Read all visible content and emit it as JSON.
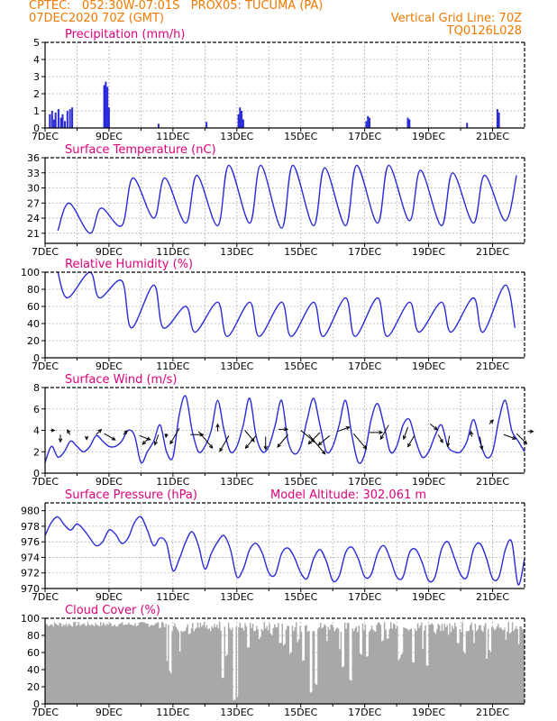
{
  "header": {
    "line1_left": "CPTEC:   052:30W-07:01S   PROX05: TUCUMA (PA)",
    "line2_left": "07DEC2020 70Z (GMT)",
    "line2_right": "Vertical Grid Line: 70Z",
    "line3_right": "TQ0126L028"
  },
  "colors": {
    "header": "#f07a00",
    "title": "#e0007a",
    "line": "#2a2ad8",
    "bar": "#2a2ad8",
    "cloud": "#a8a8a8",
    "arrow": "#000000",
    "grid": "#9a9a9a"
  },
  "chart_data": [
    {
      "type": "bar",
      "title": "Precipitation (mm/h)",
      "x_tick_labels": [
        "7DEC",
        "9DEC",
        "11DEC",
        "13DEC",
        "15DEC",
        "17DEC",
        "19DEC",
        "21DEC"
      ],
      "day_start": 7,
      "day_end": 22,
      "ylim": [
        0,
        5
      ],
      "yticks": [
        0,
        1,
        2,
        3,
        4,
        5
      ],
      "grid": true,
      "bars": [
        [
          7.15,
          0.8
        ],
        [
          7.22,
          1.0
        ],
        [
          7.28,
          0.5
        ],
        [
          7.33,
          0.9
        ],
        [
          7.42,
          1.1
        ],
        [
          7.5,
          0.6
        ],
        [
          7.55,
          0.8
        ],
        [
          7.62,
          0.4
        ],
        [
          7.7,
          1.0
        ],
        [
          7.78,
          1.1
        ],
        [
          7.85,
          1.2
        ],
        [
          8.85,
          2.5
        ],
        [
          8.9,
          2.7
        ],
        [
          8.95,
          2.4
        ],
        [
          9.0,
          1.2
        ],
        [
          10.55,
          0.25
        ],
        [
          12.05,
          0.35
        ],
        [
          13.05,
          0.8
        ],
        [
          13.1,
          1.2
        ],
        [
          13.15,
          1.0
        ],
        [
          13.2,
          0.5
        ],
        [
          17.05,
          0.4
        ],
        [
          17.1,
          0.7
        ],
        [
          17.15,
          0.6
        ],
        [
          18.35,
          0.6
        ],
        [
          18.4,
          0.5
        ],
        [
          20.2,
          0.3
        ],
        [
          21.15,
          1.1
        ],
        [
          21.2,
          0.9
        ]
      ]
    },
    {
      "type": "line",
      "title": "Surface Temperature (nC)",
      "x_tick_labels": [
        "7DEC",
        "9DEC",
        "11DEC",
        "13DEC",
        "15DEC",
        "17DEC",
        "19DEC",
        "21DEC"
      ],
      "day_start": 7,
      "day_end": 22,
      "ylim": [
        19,
        36
      ],
      "yticks": [
        21,
        24,
        27,
        30,
        33,
        36
      ],
      "grid": true,
      "min_hour": 0.4,
      "max_hour": 0.75,
      "daily_min": [
        21.5,
        21.0,
        22.5,
        24.0,
        23.0,
        22.5,
        23.0,
        22.0,
        22.5,
        22.5,
        23.0,
        23.5,
        22.5,
        23.0,
        23.5,
        22.0
      ],
      "daily_max": [
        27.0,
        26.0,
        32.0,
        32.0,
        32.5,
        34.5,
        34.5,
        34.5,
        34.0,
        34.5,
        34.5,
        33.5,
        33.0,
        32.5,
        32.5,
        31.5
      ]
    },
    {
      "type": "line",
      "title": "Relative Humidity (%)",
      "x_tick_labels": [
        "7DEC",
        "9DEC",
        "11DEC",
        "13DEC",
        "15DEC",
        "17DEC",
        "19DEC",
        "21DEC"
      ],
      "day_start": 7,
      "day_end": 22,
      "ylim": [
        0,
        100
      ],
      "yticks": [
        0,
        20,
        40,
        60,
        80,
        100
      ],
      "grid": true,
      "min_hour": 0.7,
      "max_hour": 0.4,
      "daily_max": [
        100,
        100,
        90,
        85,
        60,
        65,
        65,
        65,
        65,
        70,
        70,
        65,
        65,
        70,
        85,
        85
      ],
      "daily_min": [
        70,
        70,
        35,
        35,
        30,
        25,
        25,
        25,
        25,
        25,
        25,
        30,
        30,
        30,
        35,
        45
      ]
    },
    {
      "type": "line",
      "title": "Surface Wind (m/s)",
      "x_tick_labels": [
        "7DEC",
        "9DEC",
        "11DEC",
        "13DEC",
        "15DEC",
        "17DEC",
        "19DEC",
        "21DEC"
      ],
      "day_start": 7,
      "day_end": 22,
      "ylim": [
        0,
        8
      ],
      "yticks": [
        0,
        2,
        4,
        6,
        8
      ],
      "grid": true,
      "x": [
        7.0,
        7.2,
        7.4,
        7.6,
        7.8,
        8.0,
        8.2,
        8.4,
        8.6,
        8.8,
        9.0,
        9.2,
        9.4,
        9.6,
        9.8,
        10.0,
        10.2,
        10.4,
        10.6,
        10.8,
        11.0,
        11.2,
        11.4,
        11.6,
        11.8,
        12.0,
        12.2,
        12.4,
        12.6,
        12.8,
        13.0,
        13.2,
        13.4,
        13.6,
        13.8,
        14.0,
        14.2,
        14.4,
        14.6,
        14.8,
        15.0,
        15.2,
        15.4,
        15.6,
        15.8,
        16.0,
        16.2,
        16.4,
        16.6,
        16.8,
        17.0,
        17.2,
        17.4,
        17.6,
        17.8,
        18.0,
        18.2,
        18.4,
        18.6,
        18.8,
        19.0,
        19.2,
        19.4,
        19.6,
        19.8,
        20.0,
        20.2,
        20.4,
        20.6,
        20.8,
        21.0,
        21.2,
        21.4,
        21.6,
        21.8,
        22.0
      ],
      "values": [
        1.0,
        2.5,
        1.5,
        2.0,
        3.0,
        2.5,
        2.0,
        2.5,
        3.5,
        3.0,
        2.5,
        2.5,
        3.0,
        4.0,
        3.5,
        1.0,
        2.0,
        3.0,
        4.5,
        2.0,
        1.5,
        5.5,
        7.2,
        4.0,
        2.0,
        2.5,
        4.0,
        6.8,
        4.0,
        2.0,
        2.5,
        4.5,
        7.0,
        3.5,
        2.0,
        2.5,
        4.5,
        6.8,
        3.0,
        1.8,
        2.5,
        5.0,
        7.0,
        4.5,
        2.0,
        2.5,
        4.5,
        6.8,
        3.5,
        1.0,
        1.8,
        5.0,
        6.5,
        4.5,
        2.0,
        2.5,
        4.5,
        5.0,
        3.0,
        1.5,
        2.0,
        3.5,
        4.5,
        2.5,
        2.0,
        2.0,
        3.0,
        5.0,
        3.0,
        1.5,
        2.0,
        5.0,
        6.8,
        4.0,
        3.0,
        2.0
      ],
      "arrows": [
        [
          7.18,
          4.0,
          0,
          4
        ],
        [
          7.48,
          3.6,
          -90,
          8
        ],
        [
          7.78,
          3.6,
          120,
          6
        ],
        [
          8.3,
          3.4,
          -90,
          3
        ],
        [
          8.6,
          3.6,
          45,
          8
        ],
        [
          8.85,
          3.7,
          -30,
          14
        ],
        [
          9.45,
          3.6,
          45,
          6
        ],
        [
          9.95,
          3.5,
          -20,
          13
        ],
        [
          10.25,
          3.3,
          -135,
          10
        ],
        [
          10.55,
          3.6,
          -110,
          12
        ],
        [
          10.8,
          3.7,
          -100,
          4
        ],
        [
          11.2,
          4.2,
          -120,
          20
        ],
        [
          11.55,
          3.6,
          0,
          14
        ],
        [
          11.8,
          3.9,
          -50,
          24
        ],
        [
          12.4,
          3.9,
          90,
          8
        ],
        [
          12.75,
          3.5,
          -120,
          20
        ],
        [
          13.25,
          4.0,
          -50,
          16
        ],
        [
          13.6,
          3.5,
          -130,
          18
        ],
        [
          13.9,
          3.4,
          -90,
          14
        ],
        [
          14.3,
          4.1,
          0,
          10
        ],
        [
          14.6,
          3.6,
          -130,
          18
        ],
        [
          15.0,
          4.0,
          -40,
          20
        ],
        [
          15.25,
          3.6,
          -50,
          28
        ],
        [
          15.6,
          3.8,
          -135,
          18
        ],
        [
          15.9,
          3.5,
          -140,
          16
        ],
        [
          16.15,
          3.9,
          20,
          14
        ],
        [
          16.65,
          3.7,
          -50,
          22
        ],
        [
          17.15,
          3.8,
          0,
          14
        ],
        [
          17.75,
          4.5,
          -120,
          18
        ],
        [
          18.35,
          4.3,
          -110,
          14
        ],
        [
          18.55,
          3.5,
          -120,
          14
        ],
        [
          19.05,
          4.6,
          -40,
          10
        ],
        [
          19.3,
          3.6,
          -60,
          10
        ],
        [
          19.65,
          3.5,
          -100,
          12
        ],
        [
          20.35,
          3.4,
          100,
          6
        ],
        [
          20.6,
          3.4,
          -80,
          14
        ],
        [
          20.9,
          4.6,
          45,
          6
        ],
        [
          21.35,
          3.6,
          -20,
          14
        ],
        [
          21.75,
          3.7,
          -45,
          16
        ],
        [
          22.1,
          3.9,
          0,
          6
        ]
      ]
    },
    {
      "type": "line",
      "title": "Surface Pressure (hPa)",
      "subtitle": "Model Altitude: 302.061 m",
      "x_tick_labels": [
        "7DEC",
        "9DEC",
        "11DEC",
        "13DEC",
        "15DEC",
        "17DEC",
        "19DEC",
        "21DEC"
      ],
      "day_start": 7,
      "day_end": 22,
      "ylim": [
        970,
        981
      ],
      "yticks": [
        970,
        972,
        974,
        976,
        978,
        980
      ],
      "grid": true,
      "x": [
        7.0,
        7.2,
        7.4,
        7.6,
        7.8,
        8.0,
        8.2,
        8.4,
        8.6,
        8.8,
        9.0,
        9.2,
        9.4,
        9.6,
        9.8,
        10.0,
        10.2,
        10.4,
        10.6,
        10.8,
        11.0,
        11.2,
        11.4,
        11.6,
        11.8,
        12.0,
        12.2,
        12.4,
        12.6,
        12.8,
        13.0,
        13.2,
        13.4,
        13.6,
        13.8,
        14.0,
        14.2,
        14.4,
        14.6,
        14.8,
        15.0,
        15.2,
        15.4,
        15.6,
        15.8,
        16.0,
        16.2,
        16.4,
        16.6,
        16.8,
        17.0,
        17.2,
        17.4,
        17.6,
        17.8,
        18.0,
        18.2,
        18.4,
        18.6,
        18.8,
        19.0,
        19.2,
        19.4,
        19.6,
        19.8,
        20.0,
        20.2,
        20.4,
        20.6,
        20.8,
        21.0,
        21.2,
        21.4,
        21.6,
        21.8,
        22.0
      ],
      "values": [
        976.8,
        978.5,
        979.2,
        978.2,
        977.5,
        978.3,
        977.6,
        976.5,
        975.5,
        976.0,
        977.5,
        977.0,
        975.8,
        976.5,
        978.5,
        979.2,
        977.5,
        975.5,
        976.5,
        975.8,
        972.3,
        973.8,
        976.0,
        977.3,
        975.5,
        972.5,
        974.5,
        976.0,
        976.8,
        975.0,
        971.5,
        972.5,
        975.0,
        975.8,
        974.5,
        972.0,
        971.8,
        974.5,
        975.2,
        974.0,
        972.0,
        971.3,
        973.8,
        975.0,
        973.5,
        971.0,
        971.6,
        974.6,
        975.3,
        973.8,
        971.5,
        971.8,
        974.5,
        975.5,
        973.8,
        971.5,
        971.5,
        974.6,
        975.0,
        973.3,
        971.0,
        971.5,
        975.0,
        976.0,
        974.0,
        971.8,
        971.5,
        975.0,
        975.8,
        974.0,
        971.3,
        971.5,
        975.0,
        976.0,
        970.5,
        973.8
      ]
    },
    {
      "type": "area",
      "title": "Cloud Cover (%)",
      "x_tick_labels": [
        "7DEC",
        "9DEC",
        "11DEC",
        "13DEC",
        "15DEC",
        "17DEC",
        "19DEC",
        "21DEC"
      ],
      "day_start": 7,
      "day_end": 22,
      "ylim": [
        0,
        100
      ],
      "yticks": [
        0,
        20,
        40,
        60,
        80,
        100
      ],
      "grid": true,
      "base_level": 93,
      "dips": [
        [
          10.8,
          50
        ],
        [
          10.9,
          35
        ],
        [
          11.2,
          60
        ],
        [
          11.5,
          80
        ],
        [
          11.7,
          88
        ],
        [
          12.1,
          85
        ],
        [
          12.55,
          30
        ],
        [
          12.65,
          55
        ],
        [
          12.9,
          4
        ],
        [
          13.0,
          8
        ],
        [
          13.35,
          65
        ],
        [
          13.7,
          75
        ],
        [
          14.05,
          80
        ],
        [
          14.35,
          70
        ],
        [
          14.45,
          68
        ],
        [
          14.65,
          58
        ],
        [
          14.9,
          72
        ],
        [
          15.05,
          50
        ],
        [
          15.3,
          12
        ],
        [
          15.45,
          22
        ],
        [
          15.8,
          70
        ],
        [
          16.2,
          62
        ],
        [
          16.3,
          40
        ],
        [
          16.55,
          25
        ],
        [
          16.85,
          55
        ],
        [
          17.05,
          55
        ],
        [
          17.55,
          72
        ],
        [
          17.7,
          75
        ],
        [
          18.05,
          50
        ],
        [
          18.15,
          55
        ],
        [
          18.5,
          48
        ],
        [
          18.8,
          62
        ],
        [
          18.95,
          42
        ],
        [
          19.2,
          78
        ],
        [
          19.6,
          80
        ],
        [
          19.9,
          70
        ],
        [
          20.1,
          58
        ],
        [
          20.4,
          68
        ],
        [
          20.8,
          52
        ],
        [
          20.9,
          60
        ],
        [
          21.4,
          72
        ],
        [
          21.55,
          82
        ],
        [
          21.8,
          68
        ]
      ]
    }
  ]
}
